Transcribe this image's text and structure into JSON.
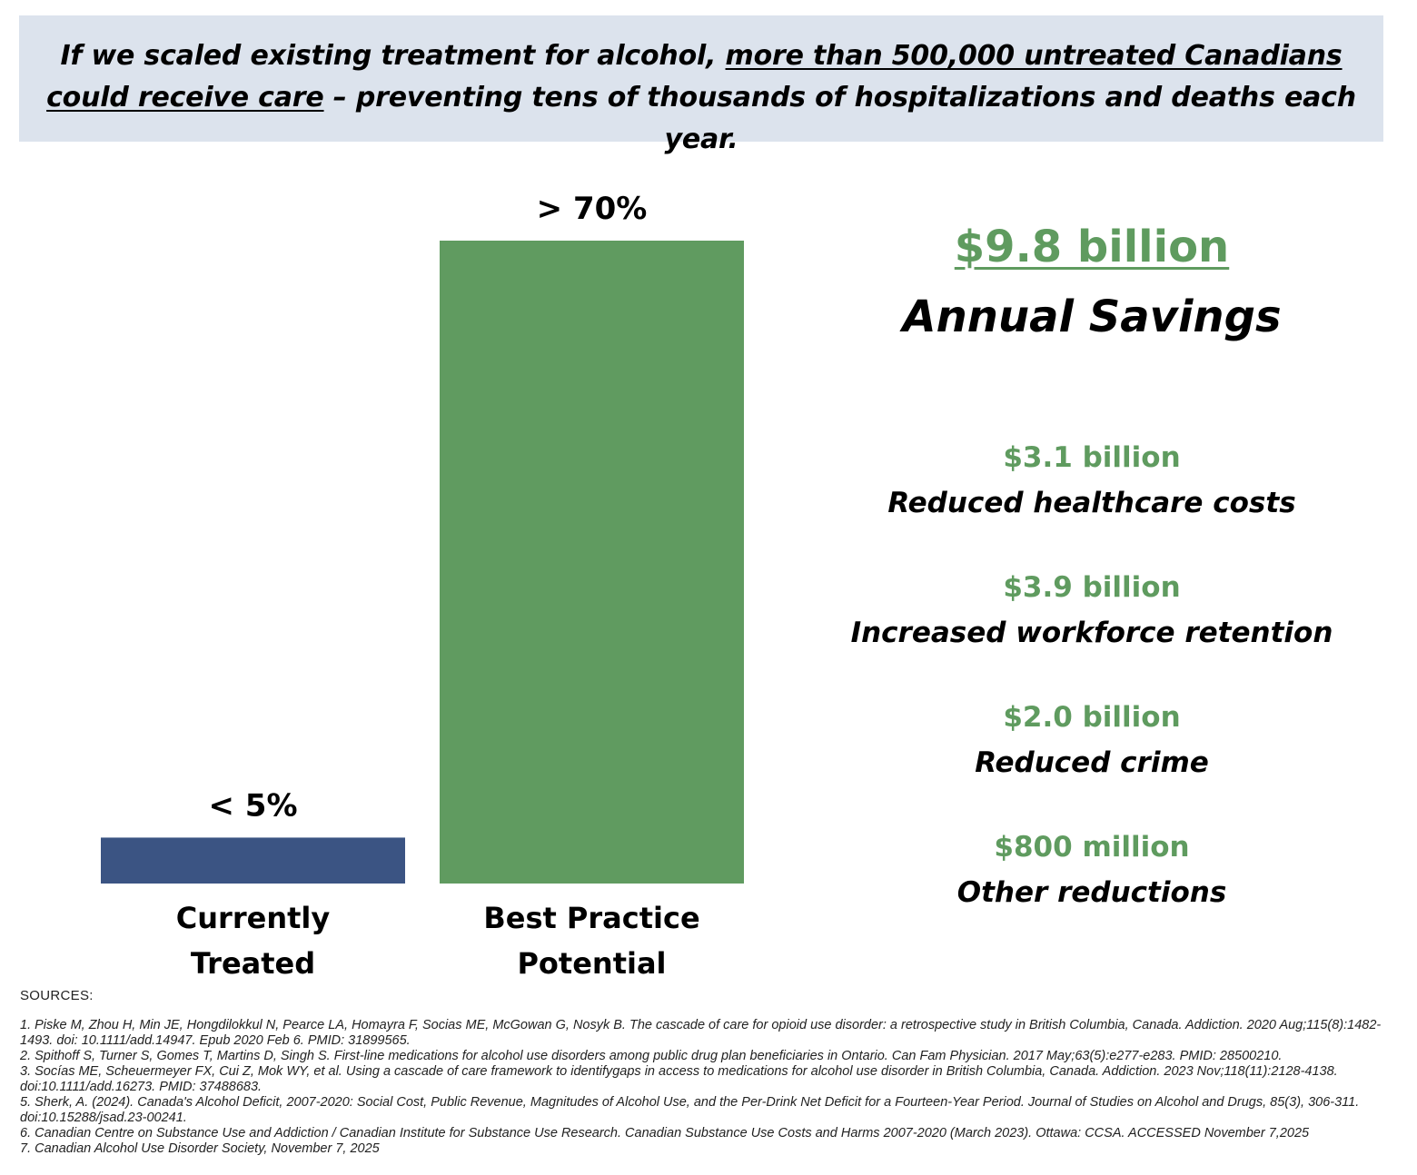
{
  "banner": {
    "part1": "If we scaled existing treatment for alcohol, ",
    "part2_underlined": "more than 500,000 untreated Canadians could receive care",
    "part3": " – preventing tens of thousands of hospitalizations and deaths each year."
  },
  "chart_data": {
    "type": "bar",
    "categories": [
      "Currently Treated",
      "Best Practice Potential"
    ],
    "category_lines": [
      [
        "Currently",
        "Treated"
      ],
      [
        "Best Practice",
        "Potential"
      ]
    ],
    "values": [
      5,
      70
    ],
    "data_labels": [
      "< 5%",
      "> 70%"
    ],
    "colors": [
      "#3b5483",
      "#609b60"
    ],
    "ylim": [
      0,
      70
    ],
    "title": "",
    "xlabel": "",
    "ylabel": ""
  },
  "savings": {
    "total_value": "$9.8 billion",
    "total_label": "Annual Savings",
    "items": [
      {
        "value": "$3.1 billion",
        "label": "Reduced healthcare costs"
      },
      {
        "value": "$3.9 billion",
        "label": "Increased workforce retention"
      },
      {
        "value": "$2.0 billion",
        "label": "Reduced crime"
      },
      {
        "value": "$800 million",
        "label": "Other reductions"
      }
    ]
  },
  "sources": {
    "title": "SOURCES:",
    "refs": [
      "1. Piske M, Zhou H, Min JE, Hongdilokkul N, Pearce LA, Homayra F, Socias ME, McGowan G, Nosyk B. The cascade of care for opioid use disorder: a retrospective study in British Columbia, Canada. Addiction. 2020 Aug;115(8):1482-1493. doi: 10.1111/add.14947. Epub 2020 Feb 6. PMID: 31899565.",
      "2. Spithoff S, Turner S, Gomes T, Martins D, Singh S. First-line medications for alcohol use disorders among public drug plan beneficiaries in Ontario. Can Fam Physician. 2017 May;63(5):e277-e283. PMID: 28500210.",
      "3. Socías ME, Scheuermeyer FX, Cui Z, Mok WY, et al. Using a cascade of care framework to identifygaps in access to medications for alcohol use disorder in British Columbia, Canada. Addiction. 2023 Nov;118(11):2128-4138. doi:10.1111/add.16273. PMID: 37488683.",
      "5. Sherk, A. (2024). Canada's Alcohol Deficit, 2007-2020: Social Cost, Public Revenue, Magnitudes of Alcohol Use, and the Per-Drink Net Deficit for a Fourteen-Year Period. Journal of Studies on Alcohol and Drugs, 85(3), 306-311. doi:10.15288/jsad.23-00241.",
      "6. Canadian Centre on Substance Use and Addiction / Canadian Institute for Substance Use Research. Canadian Substance Use Costs and Harms 2007-2020 (March 2023). Ottawa: CCSA. ACCESSED November 7,2025",
      "7. Canadian Alcohol Use Disorder Society, November 7, 2025"
    ]
  }
}
